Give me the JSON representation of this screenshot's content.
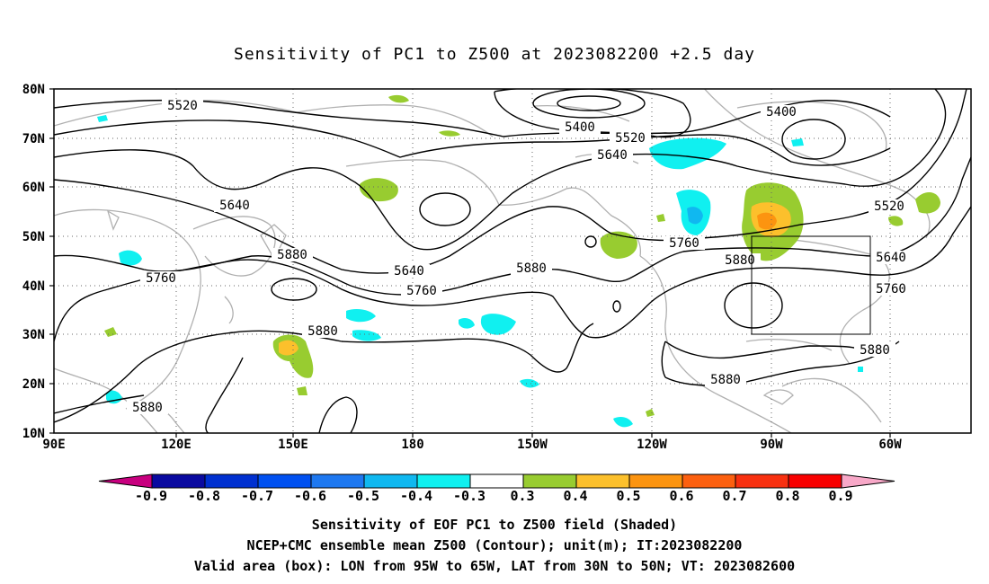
{
  "title": "Sensitivity of PC1 to Z500 at 2023082200 +2.5 day",
  "map": {
    "lat_labels": [
      "80N",
      "70N",
      "60N",
      "50N",
      "40N",
      "30N",
      "20N",
      "10N"
    ],
    "lon_labels": [
      "90E",
      "120E",
      "150E",
      "180",
      "150W",
      "120W",
      "90W",
      "60W"
    ],
    "contour_labels": [
      "5520",
      "5400",
      "5520",
      "5400",
      "5640",
      "5640",
      "5760",
      "5640",
      "5880",
      "5760",
      "5880",
      "5760",
      "5880",
      "5880",
      "5640",
      "5760",
      "5880",
      "5880",
      "5520",
      "5880"
    ],
    "valid_box": {
      "lon_from": "95W",
      "lon_to": "65W",
      "lat_from": "30N",
      "lat_to": "50N"
    }
  },
  "colorbar": {
    "labels": [
      "-0.9",
      "-0.8",
      "-0.7",
      "-0.6",
      "-0.5",
      "-0.4",
      "-0.3",
      "0.3",
      "0.4",
      "0.5",
      "0.6",
      "0.7",
      "0.8",
      "0.9"
    ],
    "colors": [
      "#c8007f",
      "#0a0aa0",
      "#0030d0",
      "#0050f0",
      "#1e78f0",
      "#10b8f0",
      "#10f0f0",
      "#ffffff",
      "#98cc30",
      "#fcc02c",
      "#fc9410",
      "#fc6010",
      "#f83010",
      "#f80000",
      "#f8a8c8"
    ]
  },
  "footer": {
    "line1": "Sensitivity of EOF PC1 to Z500 field (Shaded)",
    "line2": "NCEP+CMC ensemble mean Z500 (Contour); unit(m); IT:2023082200",
    "line3": "Valid area (box): LON from 95W to 65W, LAT from 30N to 50N; VT: 2023082600"
  }
}
